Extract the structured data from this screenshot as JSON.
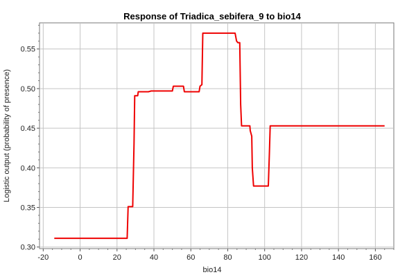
{
  "chart_data": {
    "type": "line",
    "title": "Response of Triadica_sebifera_9 to bio14",
    "xlabel": "bio14",
    "ylabel": "Logistic output (probability of presence)",
    "xlim": [
      -22,
      170
    ],
    "ylim": [
      0.298,
      0.583
    ],
    "x_ticks": [
      -20,
      0,
      20,
      40,
      60,
      80,
      100,
      120,
      140,
      160
    ],
    "x_tick_labels": [
      "-20",
      "0",
      "20",
      "40",
      "60",
      "80",
      "100",
      "120",
      "140",
      "160"
    ],
    "y_ticks": [
      0.3,
      0.35,
      0.4,
      0.45,
      0.5,
      0.55
    ],
    "y_tick_labels": [
      "0.30",
      "0.35",
      "0.40",
      "0.45",
      "0.50",
      "0.55"
    ],
    "grid": true,
    "colors": {
      "line": "#ee0000",
      "grid": "#c4c4c4",
      "frame": "#777777"
    },
    "series": [
      {
        "x": [
          -14,
          25.5,
          26,
          28.5,
          29.2,
          29.6,
          31.2,
          31.5,
          35,
          37,
          38.5,
          50,
          50.5,
          56,
          56.5,
          64.5,
          65,
          66,
          66.5,
          67,
          84,
          84.8,
          85.5,
          86.5,
          87,
          87.5,
          92,
          92.2,
          93,
          93.3,
          94,
          102,
          102.6,
          103,
          165
        ],
        "y": [
          0.311,
          0.311,
          0.351,
          0.351,
          0.43,
          0.491,
          0.491,
          0.496,
          0.496,
          0.496,
          0.497,
          0.497,
          0.503,
          0.503,
          0.496,
          0.496,
          0.503,
          0.505,
          0.57,
          0.57,
          0.57,
          0.56,
          0.558,
          0.558,
          0.48,
          0.453,
          0.453,
          0.447,
          0.44,
          0.4,
          0.377,
          0.377,
          0.42,
          0.453,
          0.453
        ]
      }
    ]
  }
}
